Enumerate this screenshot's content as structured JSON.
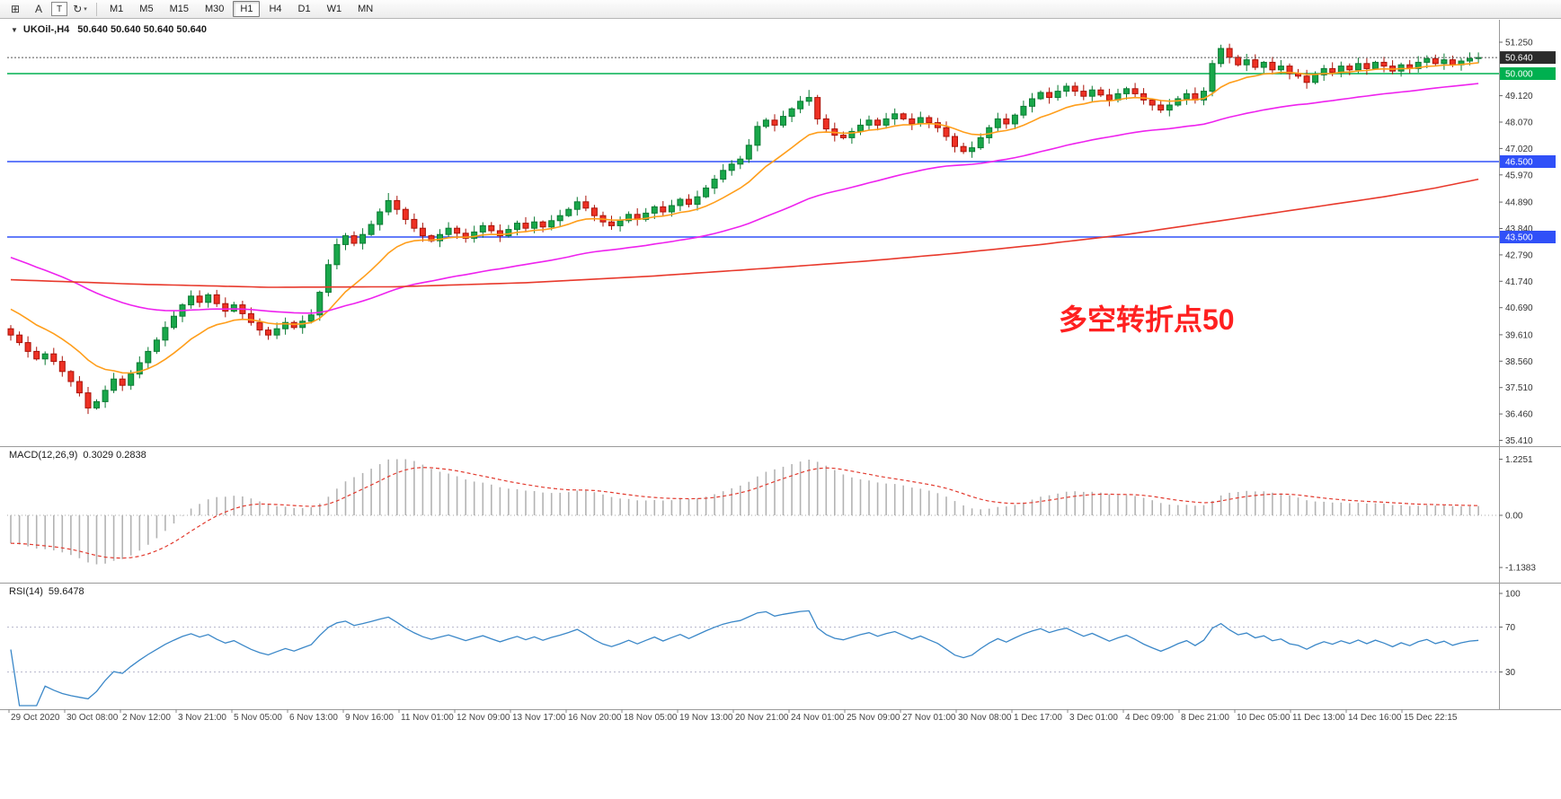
{
  "toolbar": {
    "tools": [
      {
        "id": "chart-grid",
        "glyph": "⊞"
      },
      {
        "id": "text-annotation",
        "glyph": "A"
      },
      {
        "id": "text-label",
        "glyph": "T",
        "boxed": true
      },
      {
        "id": "shapes-dropdown",
        "glyph": "↻",
        "caret": "▾"
      }
    ],
    "timeframes": [
      "M1",
      "M5",
      "M15",
      "M30",
      "H1",
      "H4",
      "D1",
      "W1",
      "MN"
    ],
    "active_timeframe": "H1"
  },
  "chart": {
    "collapse_glyph": "▼",
    "title": "UKOil-,H4",
    "ohlc_text": "50.640 50.640 50.640 50.640",
    "annotation": {
      "text": "多空转折点50",
      "color": "#ff2020"
    }
  },
  "chart_data": {
    "type": "candlestick",
    "symbol": "UKOil-",
    "timeframe": "H4",
    "first_open": 39.85,
    "closes": [
      39.6,
      39.3,
      38.95,
      38.65,
      38.85,
      38.55,
      38.15,
      37.75,
      37.3,
      36.7,
      36.95,
      37.4,
      37.85,
      37.6,
      38.05,
      38.5,
      38.95,
      39.4,
      39.9,
      40.35,
      40.8,
      41.15,
      40.9,
      41.2,
      40.85,
      40.55,
      40.8,
      40.45,
      40.1,
      39.8,
      39.6,
      39.85,
      40.1,
      39.9,
      40.15,
      40.4,
      41.3,
      42.4,
      43.2,
      43.55,
      43.25,
      43.6,
      44.0,
      44.5,
      44.95,
      44.6,
      44.2,
      43.85,
      43.55,
      43.35,
      43.6,
      43.85,
      43.65,
      43.45,
      43.7,
      43.95,
      43.75,
      43.55,
      43.8,
      44.05,
      43.85,
      44.1,
      43.9,
      44.15,
      44.35,
      44.6,
      44.9,
      44.65,
      44.35,
      44.1,
      43.95,
      44.15,
      44.4,
      44.2,
      44.45,
      44.7,
      44.5,
      44.75,
      45.0,
      44.8,
      45.1,
      45.45,
      45.8,
      46.15,
      46.4,
      46.6,
      47.15,
      47.9,
      48.15,
      47.95,
      48.3,
      48.6,
      48.9,
      49.05,
      48.2,
      47.8,
      47.55,
      47.45,
      47.7,
      47.95,
      48.15,
      47.95,
      48.2,
      48.4,
      48.2,
      48.0,
      48.25,
      48.05,
      47.85,
      47.5,
      47.1,
      46.9,
      47.05,
      47.45,
      47.85,
      48.2,
      48.0,
      48.35,
      48.7,
      49.0,
      49.25,
      49.05,
      49.3,
      49.5,
      49.3,
      49.1,
      49.35,
      49.15,
      48.95,
      49.2,
      49.4,
      49.2,
      48.95,
      48.75,
      48.55,
      48.75,
      49.0,
      49.2,
      48.95,
      49.3,
      50.4,
      51.0,
      50.65,
      50.35,
      50.55,
      50.25,
      50.45,
      50.15,
      50.3,
      50.0,
      49.9,
      49.65,
      49.95,
      50.2,
      50.05,
      50.3,
      50.15,
      50.4,
      50.2,
      50.45,
      50.3,
      50.1,
      50.35,
      50.2,
      50.45,
      50.6,
      50.4,
      50.55,
      50.35,
      50.5,
      50.6,
      50.64
    ],
    "special_wicks": {
      "9": {
        "low": 36.46
      },
      "44": {
        "high": 45.25
      },
      "93": {
        "high": 49.35
      },
      "141": {
        "high": 51.15
      }
    },
    "last_price": 50.64,
    "style": {
      "up_fill": "#19a74a",
      "up_stroke": "#0b7a33",
      "down_fill": "#ee3124",
      "down_stroke": "#aa1208"
    },
    "y_axis": {
      "max": 51.25,
      "min": 35.41,
      "ticks": [
        "51.250",
        "49.120",
        "48.070",
        "47.020",
        "45.970",
        "44.890",
        "43.840",
        "42.790",
        "41.740",
        "40.690",
        "39.610",
        "38.560",
        "37.510",
        "36.460",
        "35.410"
      ]
    },
    "price_lines": [
      {
        "price": 50.64,
        "badge": "50.640",
        "badge_bg": "#2b2b2b",
        "color": "#555555",
        "style": "dotted"
      },
      {
        "price": 50.0,
        "badge": "50.000",
        "badge_bg": "#00b050",
        "color": "#00b050",
        "style": "solid"
      },
      {
        "price": 46.5,
        "badge": "46.500",
        "badge_bg": "#3050f8",
        "color": "#3050f8",
        "style": "solid"
      },
      {
        "price": 43.5,
        "badge": "43.500",
        "badge_bg": "#3050f8",
        "color": "#3050f8",
        "style": "solid"
      }
    ],
    "moving_averages": [
      {
        "name": "ma-fast",
        "type": "ema",
        "period": 13,
        "seed": 40.8,
        "color": "#ff9e1b"
      },
      {
        "name": "ma-medium",
        "type": "ema",
        "period": 55,
        "seed": 42.8,
        "color": "#ee22ee"
      },
      {
        "name": "ma-slow",
        "type": "waypoints",
        "color": "#e8392c",
        "points": [
          [
            0,
            41.8
          ],
          [
            15,
            41.62
          ],
          [
            30,
            41.5
          ],
          [
            45,
            41.52
          ],
          [
            60,
            41.68
          ],
          [
            75,
            41.95
          ],
          [
            90,
            42.3
          ],
          [
            100,
            42.55
          ],
          [
            110,
            42.85
          ],
          [
            120,
            43.2
          ],
          [
            130,
            43.6
          ],
          [
            140,
            44.1
          ],
          [
            150,
            44.6
          ],
          [
            160,
            45.1
          ],
          [
            166,
            45.45
          ],
          [
            171,
            45.8
          ]
        ]
      }
    ],
    "indicators": {
      "macd": {
        "label": "MACD(12,26,9)",
        "values": "0.3029 0.2838",
        "params": [
          12,
          26,
          9
        ],
        "seed_fast": 40.3,
        "seed_slow": 40.9,
        "scale_max": 1.2251,
        "scale_min": -1.1383,
        "scale_max_label": "1.2251",
        "zero_label": "0.00",
        "scale_min_label": "-1.1383",
        "histogram_color": "#b3b3b3",
        "signal_color": "#e23a2e"
      },
      "rsi": {
        "label": "RSI(14)",
        "value": "59.6478",
        "period": 14,
        "levels": [
          100,
          70,
          30
        ],
        "line_color": "#3a87c8",
        "level_line_color": "#b9b9cd"
      }
    },
    "x_labels": [
      "29 Oct 2020",
      "30 Oct 08:00",
      "2 Nov 12:00",
      "3 Nov 21:00",
      "5 Nov 05:00",
      "6 Nov 13:00",
      "9 Nov 16:00",
      "11 Nov 01:00",
      "12 Nov 09:00",
      "13 Nov 17:00",
      "16 Nov 20:00",
      "18 Nov 05:00",
      "19 Nov 13:00",
      "20 Nov 21:00",
      "24 Nov 01:00",
      "25 Nov 09:00",
      "27 Nov 01:00",
      "30 Nov 08:00",
      "1 Dec 17:00",
      "3 Dec 01:00",
      "4 Dec 09:00",
      "8 Dec 21:00",
      "10 Dec 05:00",
      "11 Dec 13:00",
      "14 Dec 16:00",
      "15 Dec 22:15"
    ]
  }
}
